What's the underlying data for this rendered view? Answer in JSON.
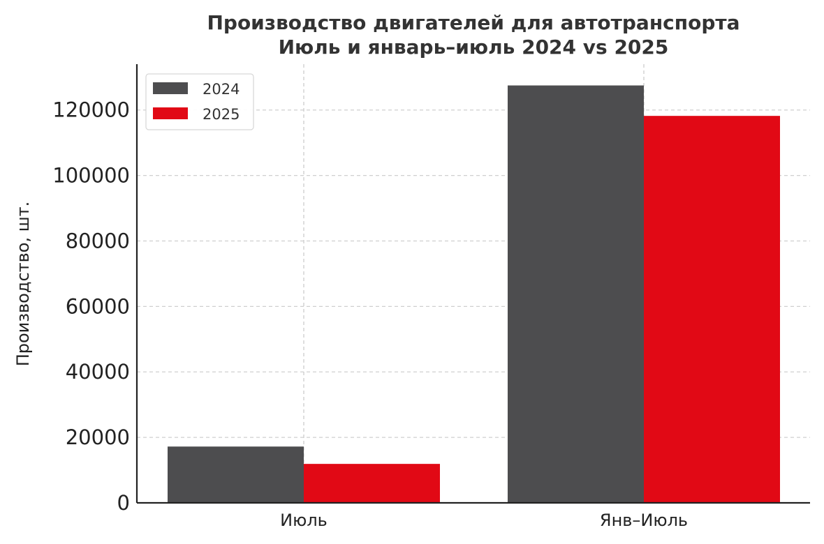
{
  "chart_data": {
    "type": "bar",
    "title": [
      "Производство двигателей для автотранспорта",
      "Июль и январь–июль 2024 vs 2025"
    ],
    "xlabel": "",
    "ylabel": "Производство, шт.",
    "categories": [
      "Июль",
      "Янв–Июль"
    ],
    "series": [
      {
        "name": "2024",
        "values": [
          17200,
          127500
        ],
        "color": "#4d4d4f"
      },
      {
        "name": "2025",
        "values": [
          11900,
          118200
        ],
        "color": "#e10915"
      }
    ],
    "ylim": [
      0,
      134000
    ],
    "yticks": [
      0,
      20000,
      40000,
      60000,
      80000,
      100000,
      120000
    ],
    "ytick_labels": [
      "0",
      "20000",
      "40000",
      "60000",
      "80000",
      "100000",
      "120000"
    ],
    "grid": true,
    "legend_position": "top-left"
  }
}
